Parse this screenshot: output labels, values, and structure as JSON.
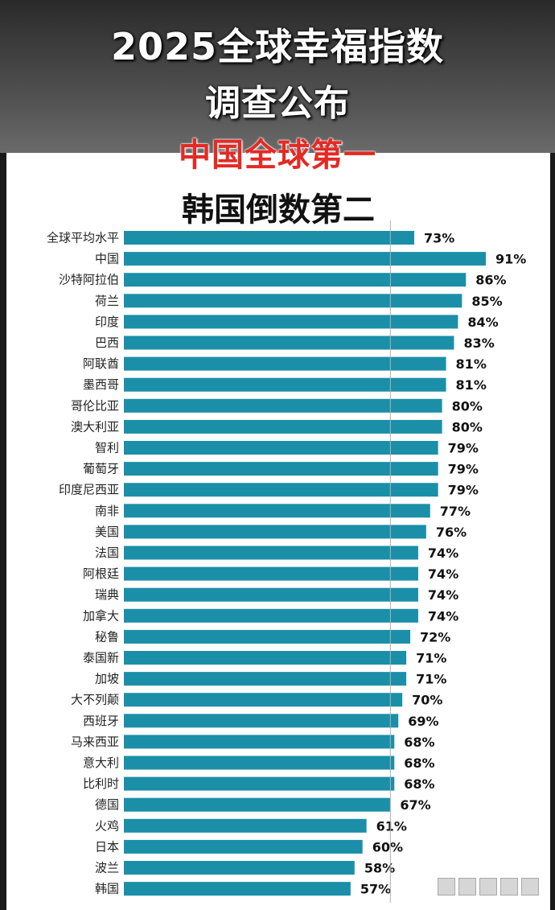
{
  "header": {
    "title_line1": "2025全球幸福指数",
    "title_line2": "调查公布",
    "subtitle_red": "中国全球第一",
    "subtitle_black": "韩国倒数第二"
  },
  "colors": {
    "bar": "#1b8fa8",
    "accent": "#e32a24",
    "ref_line": "#b0b0b0"
  },
  "chart_data": {
    "type": "bar",
    "orientation": "horizontal",
    "categories": [
      "全球平均水平",
      "中国",
      "沙特阿拉伯",
      "荷兰",
      "印度",
      "巴西",
      "阿联酋",
      "墨西哥",
      "哥伦比亚",
      "澳大利亚",
      "智利",
      "葡萄牙",
      "印度尼西亚",
      "南非",
      "美国",
      "法国",
      "阿根廷",
      "瑞典",
      "加拿大",
      "秘鲁",
      "泰国新",
      "加坡",
      "大不列颠",
      "西班牙",
      "马来西亚",
      "意大利",
      "比利时",
      "德国",
      "火鸡",
      "日本",
      "波兰",
      "韩国"
    ],
    "values": [
      73,
      91,
      86,
      85,
      84,
      83,
      81,
      81,
      80,
      80,
      79,
      79,
      79,
      77,
      76,
      74,
      74,
      74,
      74,
      72,
      71,
      71,
      70,
      69,
      68,
      68,
      68,
      67,
      61,
      60,
      58,
      57
    ],
    "value_labels": [
      "73%",
      "91%",
      "86%",
      "85%",
      "84%",
      "83%",
      "81%",
      "81%",
      "80%",
      "80%",
      "79%",
      "79%",
      "79%",
      "77%",
      "76%",
      "74%",
      "74%",
      "74%",
      "74%",
      "72%",
      "71%",
      "71%",
      "70%",
      "69%",
      "68%",
      "68%",
      "68%",
      "67%",
      "61%",
      "60%",
      "58%",
      "57%"
    ],
    "reference_line": 67,
    "grid": false,
    "legend": "none"
  },
  "icons": [
    "window-square-icon",
    "window-square-icon",
    "window-square-icon",
    "window-square-icon",
    "window-square-icon"
  ]
}
